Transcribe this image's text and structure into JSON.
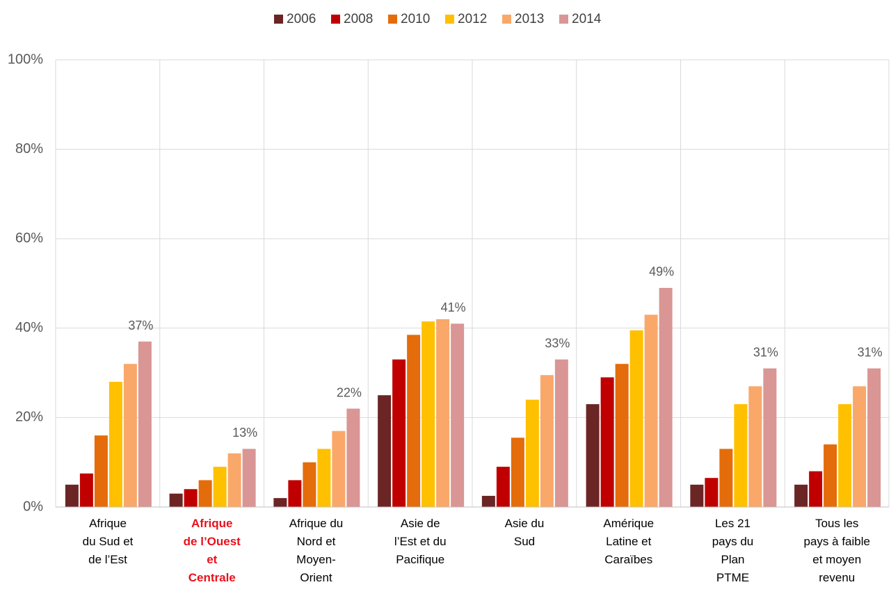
{
  "chart_data": {
    "type": "bar",
    "categories": [
      "Afrique\ndu Sud et\nde l’Est",
      "Afrique\nde l’Ouest\net\nCentrale",
      "Afrique du\nNord et\nMoyen-\nOrient",
      "Asie de\nl’Est et du\nPacifique",
      "Asie du\nSud",
      "Amérique\nLatine et\nCaraïbes",
      "Les 21\npays du\nPlan\nPTME",
      "Tous les\npays à faible\net moyen\nrevenu"
    ],
    "highlight": {
      "index": 1,
      "color": "#e8111c"
    },
    "series": [
      {
        "name": "2006",
        "color": "#6b2525",
        "values": [
          5,
          3,
          2,
          25,
          2.5,
          23,
          5,
          5
        ]
      },
      {
        "name": "2008",
        "color": "#c00000",
        "values": [
          7.5,
          4,
          6,
          33,
          9,
          29,
          6.5,
          8
        ]
      },
      {
        "name": "2010",
        "color": "#e46c0a",
        "values": [
          16,
          6,
          10,
          38.5,
          15.5,
          32,
          13,
          14
        ]
      },
      {
        "name": "2012",
        "color": "#ffc000",
        "values": [
          28,
          9,
          13,
          41.5,
          24,
          39.5,
          23,
          23
        ]
      },
      {
        "name": "2013",
        "color": "#f9a86a",
        "values": [
          32,
          12,
          17,
          42,
          29.5,
          43,
          27,
          27
        ]
      },
      {
        "name": "2014",
        "color": "#d99694",
        "values": [
          37,
          13,
          22,
          41,
          33,
          49,
          31,
          31
        ],
        "value_labels": [
          "37%",
          "13%",
          "22%",
          "41%",
          "33%",
          "49%",
          "31%",
          "31%"
        ]
      }
    ],
    "ylim": [
      0,
      100
    ],
    "yticks": [
      {
        "value": 0,
        "label": "0%"
      },
      {
        "value": 20,
        "label": "20%"
      },
      {
        "value": 40,
        "label": "40%"
      },
      {
        "value": 60,
        "label": "60%"
      },
      {
        "value": 80,
        "label": "80%"
      },
      {
        "value": 100,
        "label": "100%"
      }
    ],
    "grid": true,
    "legend": "top"
  }
}
